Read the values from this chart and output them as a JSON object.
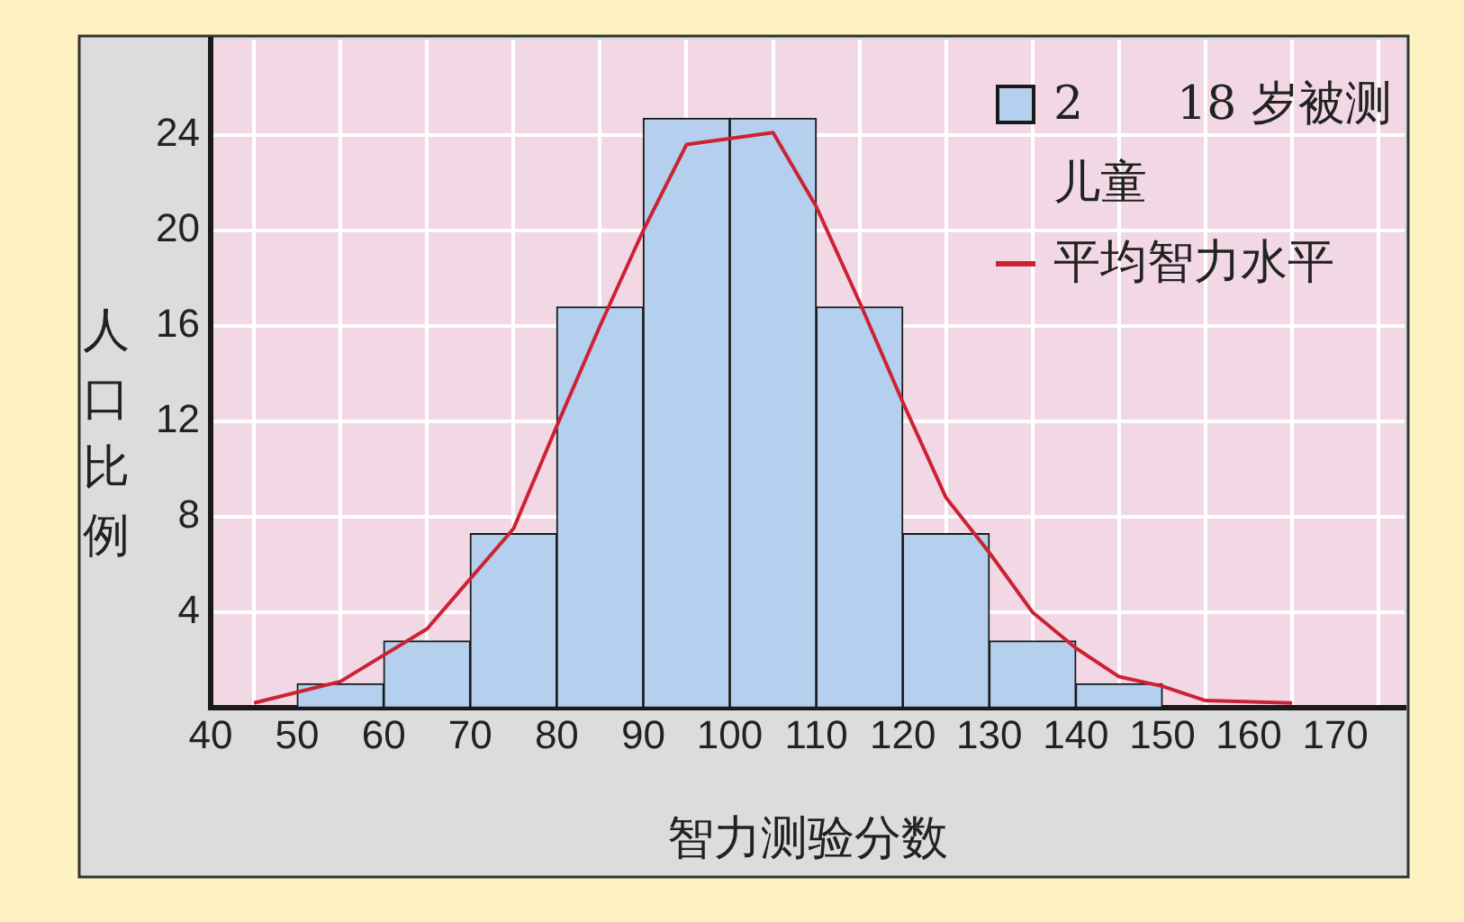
{
  "chart_data": {
    "type": "histogram",
    "xlabel": "智力测验分数",
    "ylabel": "人口比例",
    "xlim": [
      40,
      178
    ],
    "xticks": [
      40,
      50,
      60,
      70,
      80,
      90,
      100,
      110,
      120,
      130,
      140,
      150,
      160,
      170
    ],
    "ylim": [
      0,
      28
    ],
    "yticks": [
      4,
      8,
      12,
      16,
      20,
      24
    ],
    "grid": true,
    "legend": "top right",
    "series": [
      {
        "name": "2　　18 岁被测儿童",
        "color": "#b4d0ee",
        "bins": [
          50,
          60,
          70,
          80,
          90,
          100,
          110,
          120,
          130,
          140,
          150
        ],
        "values": [
          1,
          2.8,
          7.3,
          16.8,
          24.7,
          24.7,
          16.8,
          7.3,
          2.8,
          1
        ]
      },
      {
        "type": "line",
        "name": "平均智力水平",
        "color": "#cc2233",
        "x": [
          45,
          55,
          65,
          75,
          80,
          85,
          90,
          95,
          105,
          110,
          115,
          120,
          125,
          130,
          135,
          140,
          145,
          150,
          155,
          165
        ],
        "values": [
          0.2,
          1.1,
          3.3,
          7.5,
          11.8,
          16,
          20,
          23.6,
          24.1,
          21,
          17,
          12.8,
          8.8,
          6.5,
          4,
          2.5,
          1.3,
          0.9,
          0.3,
          0.2
        ]
      }
    ]
  }
}
